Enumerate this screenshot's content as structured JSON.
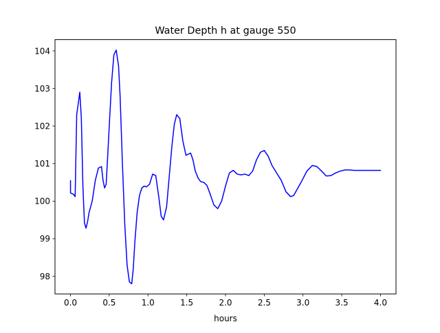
{
  "chart_data": {
    "type": "line",
    "title": "Water Depth h at gauge 550",
    "xlabel": "hours",
    "ylabel": "",
    "xlim": [
      -0.2,
      4.2
    ],
    "ylim": [
      97.53,
      104.3
    ],
    "xticks": [
      0.0,
      0.5,
      1.0,
      1.5,
      2.0,
      2.5,
      3.0,
      3.5,
      4.0
    ],
    "xtick_labels": [
      "0.0",
      "0.5",
      "1.0",
      "1.5",
      "2.0",
      "2.5",
      "3.0",
      "3.5",
      "4.0"
    ],
    "yticks": [
      98,
      99,
      100,
      101,
      102,
      103,
      104
    ],
    "ytick_labels": [
      "98",
      "99",
      "100",
      "101",
      "102",
      "103",
      "104"
    ],
    "grid": false,
    "series": [
      {
        "color": "#0000ff",
        "x": [
          0.0,
          0.0,
          0.02,
          0.04,
          0.06,
          0.08,
          0.1,
          0.12,
          0.14,
          0.16,
          0.18,
          0.2,
          0.22,
          0.24,
          0.28,
          0.32,
          0.36,
          0.4,
          0.42,
          0.44,
          0.46,
          0.48,
          0.5,
          0.53,
          0.56,
          0.59,
          0.62,
          0.64,
          0.67,
          0.7,
          0.73,
          0.76,
          0.79,
          0.81,
          0.83,
          0.86,
          0.89,
          0.92,
          0.95,
          0.98,
          1.02,
          1.06,
          1.1,
          1.14,
          1.17,
          1.2,
          1.24,
          1.28,
          1.31,
          1.34,
          1.37,
          1.41,
          1.45,
          1.49,
          1.52,
          1.55,
          1.58,
          1.61,
          1.65,
          1.68,
          1.72,
          1.76,
          1.8,
          1.85,
          1.9,
          1.95,
          2.0,
          2.05,
          2.1,
          2.15,
          2.2,
          2.25,
          2.3,
          2.35,
          2.4,
          2.45,
          2.5,
          2.55,
          2.6,
          2.66,
          2.72,
          2.78,
          2.84,
          2.88,
          2.92,
          2.98,
          3.05,
          3.12,
          3.18,
          3.24,
          3.3,
          3.36,
          3.42,
          3.48,
          3.54,
          3.6,
          3.66,
          3.72,
          3.78,
          3.84,
          3.9,
          3.96,
          4.0
        ],
        "y": [
          100.55,
          100.22,
          100.2,
          100.18,
          100.12,
          102.3,
          102.6,
          102.9,
          102.2,
          100.4,
          99.42,
          99.28,
          99.45,
          99.7,
          100.0,
          100.55,
          100.88,
          100.92,
          100.55,
          100.35,
          100.45,
          101.2,
          102.0,
          103.15,
          103.9,
          104.02,
          103.6,
          102.8,
          101.0,
          99.4,
          98.3,
          97.85,
          97.8,
          98.2,
          98.9,
          99.7,
          100.15,
          100.35,
          100.4,
          100.38,
          100.45,
          100.72,
          100.68,
          100.1,
          99.6,
          99.5,
          99.85,
          100.8,
          101.5,
          102.05,
          102.3,
          102.2,
          101.6,
          101.22,
          101.25,
          101.28,
          101.1,
          100.8,
          100.6,
          100.52,
          100.5,
          100.42,
          100.2,
          99.9,
          99.8,
          100.0,
          100.4,
          100.75,
          100.82,
          100.72,
          100.7,
          100.72,
          100.68,
          100.8,
          101.1,
          101.3,
          101.35,
          101.2,
          100.95,
          100.75,
          100.55,
          100.25,
          100.12,
          100.15,
          100.3,
          100.52,
          100.8,
          100.95,
          100.92,
          100.8,
          100.67,
          100.68,
          100.75,
          100.8,
          100.83,
          100.83,
          100.82,
          100.82,
          100.82,
          100.82,
          100.82,
          100.82,
          100.82
        ]
      }
    ]
  }
}
